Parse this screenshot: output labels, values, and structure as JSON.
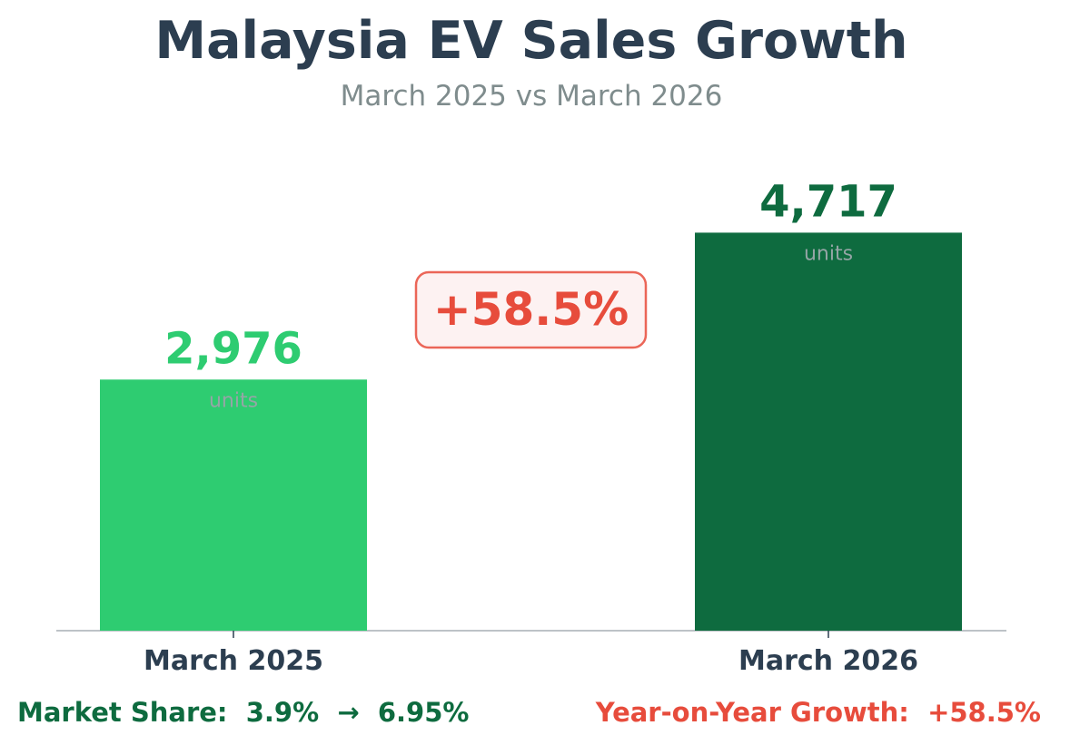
{
  "chart_data": {
    "type": "bar",
    "title": "Malaysia EV Sales Growth",
    "subtitle": "March 2025 vs March 2026",
    "categories": [
      "March 2025",
      "March 2026"
    ],
    "values": [
      2976,
      4717
    ],
    "value_labels": [
      "2,976",
      "4,717"
    ],
    "unit_label": "units",
    "bar_colors": [
      "#2ecc71",
      "#0e6b3f"
    ],
    "value_label_colors": [
      "#2ecc71",
      "#0e6b3f"
    ],
    "ylim": [
      0,
      5700
    ],
    "grid": false,
    "annotation": {
      "text": "+58.5%",
      "color": "#e74c3c",
      "background": "#fdf2f2"
    },
    "xlabel": "",
    "ylabel": ""
  },
  "footer": {
    "market_share": "Market Share:  3.9%  →  6.95%",
    "market_share_color": "#0e6b3f",
    "yoy_growth": "Year-on-Year Growth:  +58.5%",
    "yoy_growth_color": "#e74c3c"
  }
}
